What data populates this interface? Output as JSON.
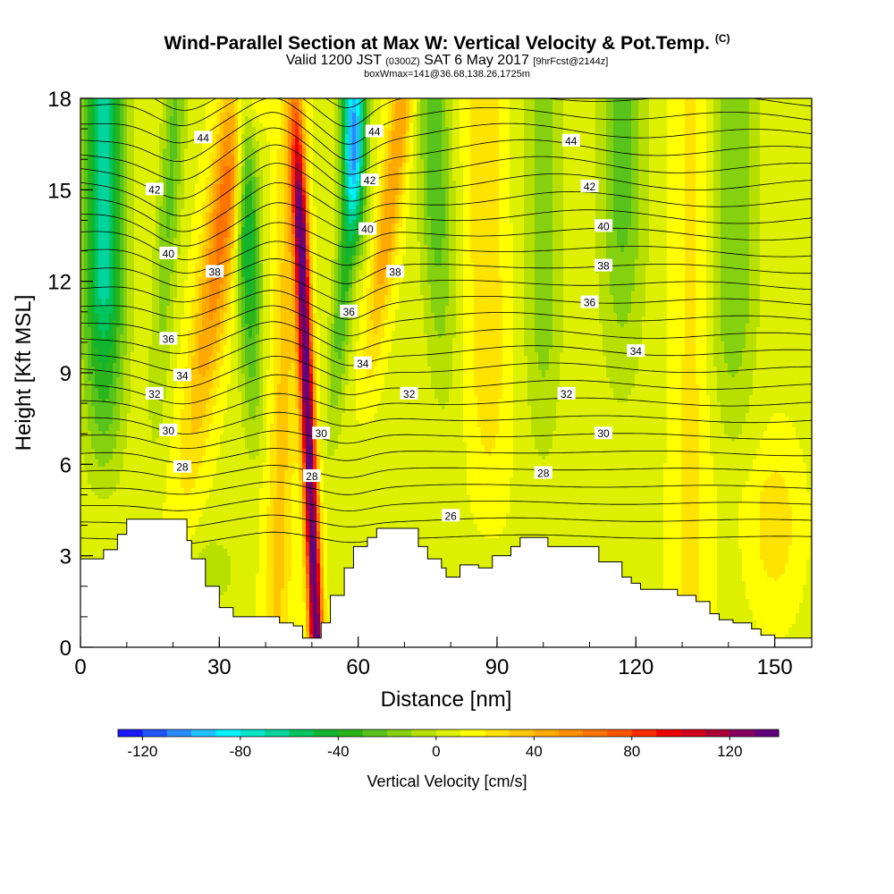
{
  "title": {
    "main": "Wind-Parallel Section at Max W: Vertical Velocity & Pot.Temp.",
    "copyright": "(C)",
    "line2_a": "Valid 1200 JST",
    "line2_b": "(0300Z)",
    "line2_c": "SAT 6 May 2017",
    "line2_d": "[9hrFcst@2144z]",
    "line3": "boxWmax=141@36.68,138.26,1725m"
  },
  "chart_data": {
    "type": "heatmap",
    "xlabel": "Distance [nm]",
    "ylabel": "Height [Kft MSL]",
    "xlim": [
      0,
      158
    ],
    "ylim": [
      0,
      18
    ],
    "x_ticks": [
      "0",
      "30",
      "60",
      "90",
      "120",
      "150"
    ],
    "y_ticks": [
      "0",
      "3",
      "6",
      "9",
      "12",
      "15",
      "18"
    ],
    "colorbar": {
      "label": "Vertical Velocity [cm/s]",
      "range": [
        -130,
        140
      ],
      "tick_labels": [
        "-120",
        "-80",
        "-40",
        "0",
        "40",
        "80",
        "120"
      ],
      "tick_values": [
        -120,
        -80,
        -40,
        0,
        40,
        80,
        120
      ],
      "colors": [
        "#1a1aff",
        "#1f55ff",
        "#2b8cff",
        "#22bfff",
        "#00f2ff",
        "#00e5c8",
        "#00d49c",
        "#00c45e",
        "#12b530",
        "#2ab41c",
        "#58c31a",
        "#86d10f",
        "#b7e000",
        "#dcf000",
        "#ffff00",
        "#ffe300",
        "#ffc600",
        "#ffaa00",
        "#ff8f00",
        "#ff7400",
        "#ff5500",
        "#ff2a00",
        "#ee0000",
        "#d0001a",
        "#ab0037",
        "#860060",
        "#62007a"
      ]
    },
    "theta_contours": {
      "levels": [
        26,
        28,
        30,
        32,
        34,
        36,
        38,
        40,
        42,
        44
      ],
      "labels": [
        {
          "text": "44",
          "x": 26.5,
          "y": 16.7
        },
        {
          "text": "44",
          "x": 63.5,
          "y": 16.9
        },
        {
          "text": "44",
          "x": 106,
          "y": 16.6
        },
        {
          "text": "42",
          "x": 16,
          "y": 15.0
        },
        {
          "text": "42",
          "x": 62.5,
          "y": 15.3
        },
        {
          "text": "42",
          "x": 110,
          "y": 15.1
        },
        {
          "text": "40",
          "x": 19,
          "y": 12.9
        },
        {
          "text": "40",
          "x": 62,
          "y": 13.7
        },
        {
          "text": "40",
          "x": 113,
          "y": 13.8
        },
        {
          "text": "38",
          "x": 29,
          "y": 12.3
        },
        {
          "text": "38",
          "x": 68,
          "y": 12.3
        },
        {
          "text": "38",
          "x": 113,
          "y": 12.5
        },
        {
          "text": "36",
          "x": 19,
          "y": 10.1
        },
        {
          "text": "36",
          "x": 58,
          "y": 11.0
        },
        {
          "text": "36",
          "x": 110,
          "y": 11.3
        },
        {
          "text": "34",
          "x": 22,
          "y": 8.9
        },
        {
          "text": "34",
          "x": 61,
          "y": 9.3
        },
        {
          "text": "34",
          "x": 120,
          "y": 9.7
        },
        {
          "text": "32",
          "x": 16,
          "y": 8.3
        },
        {
          "text": "32",
          "x": 71,
          "y": 8.3
        },
        {
          "text": "32",
          "x": 105,
          "y": 8.3
        },
        {
          "text": "30",
          "x": 19,
          "y": 7.1
        },
        {
          "text": "30",
          "x": 52,
          "y": 7.0
        },
        {
          "text": "30",
          "x": 113,
          "y": 7.0
        },
        {
          "text": "28",
          "x": 22,
          "y": 5.9
        },
        {
          "text": "28",
          "x": 50,
          "y": 5.6
        },
        {
          "text": "28",
          "x": 100,
          "y": 5.7
        },
        {
          "text": "26",
          "x": 80,
          "y": 4.3
        }
      ]
    },
    "terrain_kft": [
      [
        0,
        2.9
      ],
      [
        5,
        3.2
      ],
      [
        8,
        3.7
      ],
      [
        10,
        4.2
      ],
      [
        22,
        4.2
      ],
      [
        23,
        3.5
      ],
      [
        24,
        2.9
      ],
      [
        27,
        2.0
      ],
      [
        30,
        1.3
      ],
      [
        33,
        1.0
      ],
      [
        38,
        1.0
      ],
      [
        43,
        0.8
      ],
      [
        46,
        0.7
      ],
      [
        48,
        0.3
      ],
      [
        50,
        0.3
      ],
      [
        52,
        0.8
      ],
      [
        54,
        1.7
      ],
      [
        57,
        2.6
      ],
      [
        59,
        3.3
      ],
      [
        62,
        3.6
      ],
      [
        64,
        3.9
      ],
      [
        71,
        3.9
      ],
      [
        73,
        3.3
      ],
      [
        75,
        2.9
      ],
      [
        78,
        2.6
      ],
      [
        79,
        2.3
      ],
      [
        82,
        2.7
      ],
      [
        86,
        2.6
      ],
      [
        89,
        3.0
      ],
      [
        93,
        3.3
      ],
      [
        95,
        3.6
      ],
      [
        100,
        3.6
      ],
      [
        101,
        3.3
      ],
      [
        110,
        3.3
      ],
      [
        112,
        2.8
      ],
      [
        117,
        2.3
      ],
      [
        119,
        2.1
      ],
      [
        121,
        1.9
      ],
      [
        125,
        1.9
      ],
      [
        129,
        1.7
      ],
      [
        133,
        1.5
      ],
      [
        136,
        1.1
      ],
      [
        138,
        0.9
      ],
      [
        141,
        0.8
      ],
      [
        145,
        0.6
      ],
      [
        147,
        0.4
      ],
      [
        150,
        0.3
      ],
      [
        158,
        0.3
      ]
    ]
  }
}
